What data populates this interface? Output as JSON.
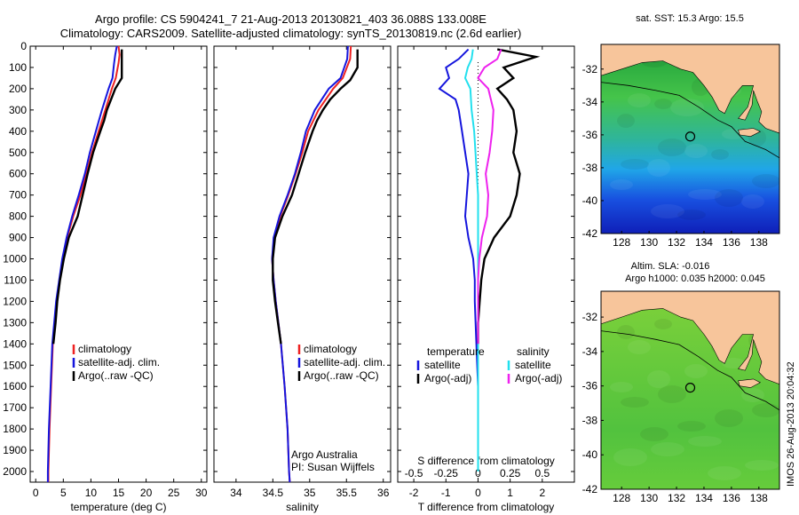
{
  "header": {
    "line1": "Argo profile: CS 5904241_7 21-Aug-2013 20130821_403 36.088S 133.008E",
    "line2": "Climatology: CARS2009. Satellite-adjusted climatology: synTS_20130819.nc (2.6d earlier)"
  },
  "side_stamp": "IMOS 26-Aug-2013 20:04:32",
  "colors": {
    "climatology": "#ee2222",
    "satellite": "#1515dd",
    "argo": "#000000",
    "salinity_satellite": "#22e0ee",
    "salinity_argo": "#ee22ee",
    "land": "#f7c59b"
  },
  "chart_data": [
    {
      "type": "line",
      "id": "temperature",
      "xlabel": "temperature (deg C)",
      "xlim": [
        -1,
        31
      ],
      "xticks": [
        0,
        5,
        10,
        15,
        20,
        25,
        30
      ],
      "ylim": [
        2050,
        0
      ],
      "yticks": [
        0,
        100,
        200,
        300,
        400,
        500,
        600,
        700,
        800,
        900,
        1000,
        1100,
        1200,
        1300,
        1400,
        1500,
        1600,
        1700,
        1800,
        1900,
        2000
      ],
      "legend": [
        "climatology",
        "satellite-adj. clim.",
        "Argo(..raw -QC)"
      ],
      "series": [
        {
          "name": "climatology",
          "color_key": "climatology",
          "y": [
            0,
            40,
            80,
            150,
            200,
            300,
            400,
            500,
            600,
            700,
            800,
            900,
            1000,
            1200,
            1400,
            1600,
            1800,
            2000,
            2050
          ],
          "values": [
            15.0,
            15.2,
            15.0,
            14.5,
            13.8,
            12.6,
            11.4,
            10.2,
            9.2,
            8.1,
            6.8,
            5.7,
            4.9,
            3.8,
            3.1,
            2.8,
            2.5,
            2.3,
            2.3
          ]
        },
        {
          "name": "satellite-adj. clim.",
          "color_key": "satellite",
          "y": [
            0,
            40,
            80,
            150,
            200,
            300,
            400,
            500,
            600,
            700,
            800,
            900,
            1000,
            1200,
            1400,
            1600,
            1800,
            2000,
            2050
          ],
          "values": [
            14.7,
            14.4,
            14.2,
            13.9,
            13.2,
            12.0,
            10.9,
            9.8,
            8.9,
            7.8,
            6.6,
            5.6,
            4.8,
            3.7,
            3.0,
            2.7,
            2.4,
            2.2,
            2.2
          ]
        },
        {
          "name": "Argo(..raw -QC)",
          "color_key": "argo",
          "y": [
            15,
            30,
            60,
            100,
            150,
            200,
            260,
            300,
            350,
            400,
            500,
            600,
            700,
            800,
            900,
            1000,
            1100,
            1200,
            1300,
            1400
          ],
          "values": [
            15.6,
            15.6,
            15.6,
            15.6,
            15.6,
            14.4,
            13.5,
            12.9,
            12.4,
            11.7,
            10.4,
            9.4,
            8.5,
            7.6,
            6.0,
            5.1,
            4.4,
            3.9,
            3.6,
            3.2
          ]
        }
      ]
    },
    {
      "type": "line",
      "id": "salinity",
      "xlabel": "salinity",
      "xlim": [
        33.7,
        36.1
      ],
      "xticks": [
        34,
        34.5,
        35,
        35.5,
        36
      ],
      "ylim": [
        2050,
        0
      ],
      "legend": [
        "climatology",
        "satellite-adj. clim.",
        "Argo(..raw -QC)"
      ],
      "annotations": [
        "Argo Australia",
        "PI: Susan Wijffels"
      ],
      "series": [
        {
          "name": "climatology",
          "color_key": "climatology",
          "y": [
            0,
            60,
            150,
            200,
            300,
            400,
            500,
            600,
            700,
            800,
            900,
            1000,
            1100,
            1200,
            1400,
            1600,
            1800,
            2000,
            2050
          ],
          "values": [
            35.56,
            35.55,
            35.45,
            35.32,
            35.12,
            34.98,
            34.9,
            34.81,
            34.71,
            34.6,
            34.52,
            34.49,
            34.51,
            34.54,
            34.61,
            34.66,
            34.7,
            34.72,
            34.73
          ]
        },
        {
          "name": "satellite-adj. clim.",
          "color_key": "satellite",
          "y": [
            0,
            60,
            150,
            200,
            300,
            400,
            500,
            600,
            700,
            800,
            900,
            1000,
            1100,
            1200,
            1400,
            1600,
            1800,
            2000,
            2050
          ],
          "values": [
            35.52,
            35.51,
            35.42,
            35.26,
            35.07,
            34.95,
            34.88,
            34.8,
            34.7,
            34.59,
            34.51,
            34.49,
            34.51,
            34.54,
            34.61,
            34.66,
            34.7,
            34.72,
            34.73
          ]
        },
        {
          "name": "Argo(..raw -QC)",
          "color_key": "argo",
          "y": [
            15,
            100,
            160,
            200,
            250,
            300,
            350,
            400,
            500,
            600,
            700,
            800,
            900,
            1000,
            1100,
            1200,
            1300,
            1400
          ],
          "values": [
            35.65,
            35.65,
            35.55,
            35.42,
            35.28,
            35.18,
            35.1,
            35.04,
            34.94,
            34.85,
            34.76,
            34.63,
            34.53,
            34.5,
            34.5,
            34.53,
            34.57,
            34.61
          ]
        }
      ]
    },
    {
      "type": "line",
      "id": "difference",
      "xlabel": "T difference from climatology",
      "xlim": [
        -2.5,
        3
      ],
      "xticks": [
        -2,
        -1,
        0,
        1,
        2
      ],
      "top_axis_label": "S difference from climatology",
      "top_xticks": [
        "-0.5",
        "-0.25",
        "0",
        "0.25",
        "0.5"
      ],
      "ylim": [
        2050,
        0
      ],
      "legend": {
        "temperature": [
          "satellite",
          "Argo(-adj)"
        ],
        "salinity": [
          "satellite",
          "Argo(-adj)"
        ]
      },
      "legend_titles": [
        "temperature",
        "salinity"
      ],
      "series": [
        {
          "name": "temperature satellite",
          "color_key": "satellite",
          "y": [
            15,
            60,
            100,
            150,
            200,
            250,
            300,
            400,
            500,
            600,
            700,
            800,
            900,
            1000,
            1100,
            1200,
            1400,
            1600,
            1800,
            2000
          ],
          "values": [
            -0.3,
            -0.6,
            -1.0,
            -0.9,
            -1.2,
            -0.7,
            -0.6,
            -0.5,
            -0.4,
            -0.3,
            -0.35,
            -0.4,
            -0.3,
            -0.15,
            -0.1,
            -0.1,
            -0.05,
            0,
            0,
            0
          ]
        },
        {
          "name": "temperature Argo(-adj)",
          "color_key": "argo",
          "y": [
            15,
            50,
            100,
            150,
            200,
            250,
            300,
            400,
            500,
            600,
            700,
            800,
            900,
            1000,
            1100,
            1200,
            1300,
            1400
          ],
          "values": [
            0.6,
            1.8,
            0.8,
            1.1,
            0.6,
            0.9,
            1.1,
            1.2,
            1.1,
            1.3,
            1.2,
            1.0,
            0.5,
            0.2,
            0.1,
            0.05,
            0,
            0
          ]
        },
        {
          "name": "salinity satellite",
          "color_key": "salinity_satellite",
          "y": [
            15,
            60,
            100,
            150,
            200,
            300,
            400,
            500,
            600,
            700,
            800,
            900,
            1000,
            1200,
            1400,
            1600,
            1800,
            2000
          ],
          "values": [
            -0.04,
            -0.05,
            -0.08,
            -0.1,
            -0.06,
            -0.05,
            -0.03,
            -0.02,
            -0.01,
            0,
            0,
            0,
            0,
            0,
            0,
            0,
            0,
            0
          ]
        },
        {
          "name": "salinity Argo(-adj)",
          "color_key": "salinity_argo",
          "y": [
            15,
            60,
            100,
            150,
            200,
            300,
            400,
            500,
            600,
            700,
            800,
            900,
            1000,
            1100,
            1200,
            1300,
            1400
          ],
          "values": [
            0.18,
            0.15,
            0.05,
            0.0,
            0.08,
            0.12,
            0.11,
            0.09,
            0.06,
            0.08,
            0.07,
            0.03,
            0.01,
            0,
            0,
            0,
            0
          ]
        }
      ]
    },
    {
      "type": "heatmap",
      "id": "sst_map",
      "title": "sat. SST: 15.3  Argo: 15.5",
      "xticks": [
        128,
        130,
        132,
        134,
        136,
        138
      ],
      "yticks": [
        -32,
        -34,
        -36,
        -38,
        -40,
        -42
      ],
      "xlim": [
        126.5,
        139.5
      ],
      "ylim": [
        -42,
        -30.5
      ],
      "profile_marker": {
        "lon": 133.0,
        "lat": -36.1
      }
    },
    {
      "type": "heatmap",
      "id": "sla_map",
      "title_lines": [
        "Altim. SLA: -0.016",
        "Argo h1000: 0.035 h2000: 0.045"
      ],
      "xticks": [
        128,
        130,
        132,
        134,
        136,
        138
      ],
      "yticks": [
        -32,
        -34,
        -36,
        -38,
        -40,
        -42
      ],
      "xlim": [
        126.5,
        139.5
      ],
      "ylim": [
        -42,
        -30.5
      ],
      "profile_marker": {
        "lon": 133.0,
        "lat": -36.1
      }
    }
  ]
}
